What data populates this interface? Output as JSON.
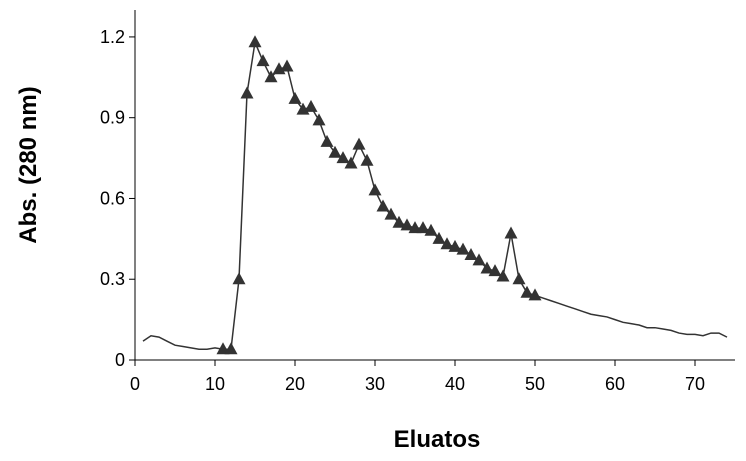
{
  "chart_data": {
    "type": "line",
    "x_label": "Eluatos",
    "y_label": "Abs. (280 nm)",
    "xlim": [
      0,
      75
    ],
    "xticks": [
      0,
      10,
      20,
      30,
      40,
      50,
      60,
      70
    ],
    "ylim": [
      0,
      1.3
    ],
    "yticks": [
      0,
      0.3,
      0.6,
      0.9,
      1.2
    ],
    "series": [
      {
        "color": "#333333",
        "marker": "none",
        "x": [
          1,
          2,
          3,
          4,
          5,
          6,
          7,
          8,
          9,
          10,
          11
        ],
        "values": [
          0.07,
          0.09,
          0.085,
          0.07,
          0.055,
          0.05,
          0.045,
          0.04,
          0.04,
          0.045,
          0.04
        ]
      },
      {
        "color": "#333333",
        "marker": "triangle",
        "x": [
          11,
          12,
          13,
          14,
          15,
          16,
          17,
          18,
          19,
          20,
          21,
          22,
          23,
          24,
          25,
          26,
          27,
          28,
          29,
          30,
          31,
          32,
          33,
          34,
          35,
          36,
          37,
          38,
          39,
          40,
          41,
          42,
          43,
          44,
          45,
          46,
          47,
          48,
          49,
          50
        ],
        "values": [
          0.04,
          0.04,
          0.3,
          0.99,
          1.18,
          1.11,
          1.05,
          1.08,
          1.09,
          0.97,
          0.93,
          0.94,
          0.89,
          0.81,
          0.77,
          0.75,
          0.73,
          0.8,
          0.74,
          0.63,
          0.57,
          0.54,
          0.51,
          0.5,
          0.49,
          0.49,
          0.48,
          0.45,
          0.43,
          0.42,
          0.41,
          0.39,
          0.37,
          0.34,
          0.33,
          0.31,
          0.47,
          0.3,
          0.25,
          0.24
        ]
      },
      {
        "color": "#333333",
        "marker": "none",
        "x": [
          50,
          51,
          52,
          53,
          54,
          55,
          56,
          57,
          58,
          59,
          60,
          61,
          62,
          63,
          64,
          65,
          66,
          67,
          68,
          69,
          70,
          71,
          72,
          73,
          74
        ],
        "values": [
          0.24,
          0.23,
          0.22,
          0.21,
          0.2,
          0.19,
          0.18,
          0.17,
          0.165,
          0.16,
          0.15,
          0.14,
          0.135,
          0.13,
          0.12,
          0.12,
          0.115,
          0.11,
          0.1,
          0.095,
          0.095,
          0.09,
          0.1,
          0.1,
          0.085
        ]
      }
    ]
  }
}
